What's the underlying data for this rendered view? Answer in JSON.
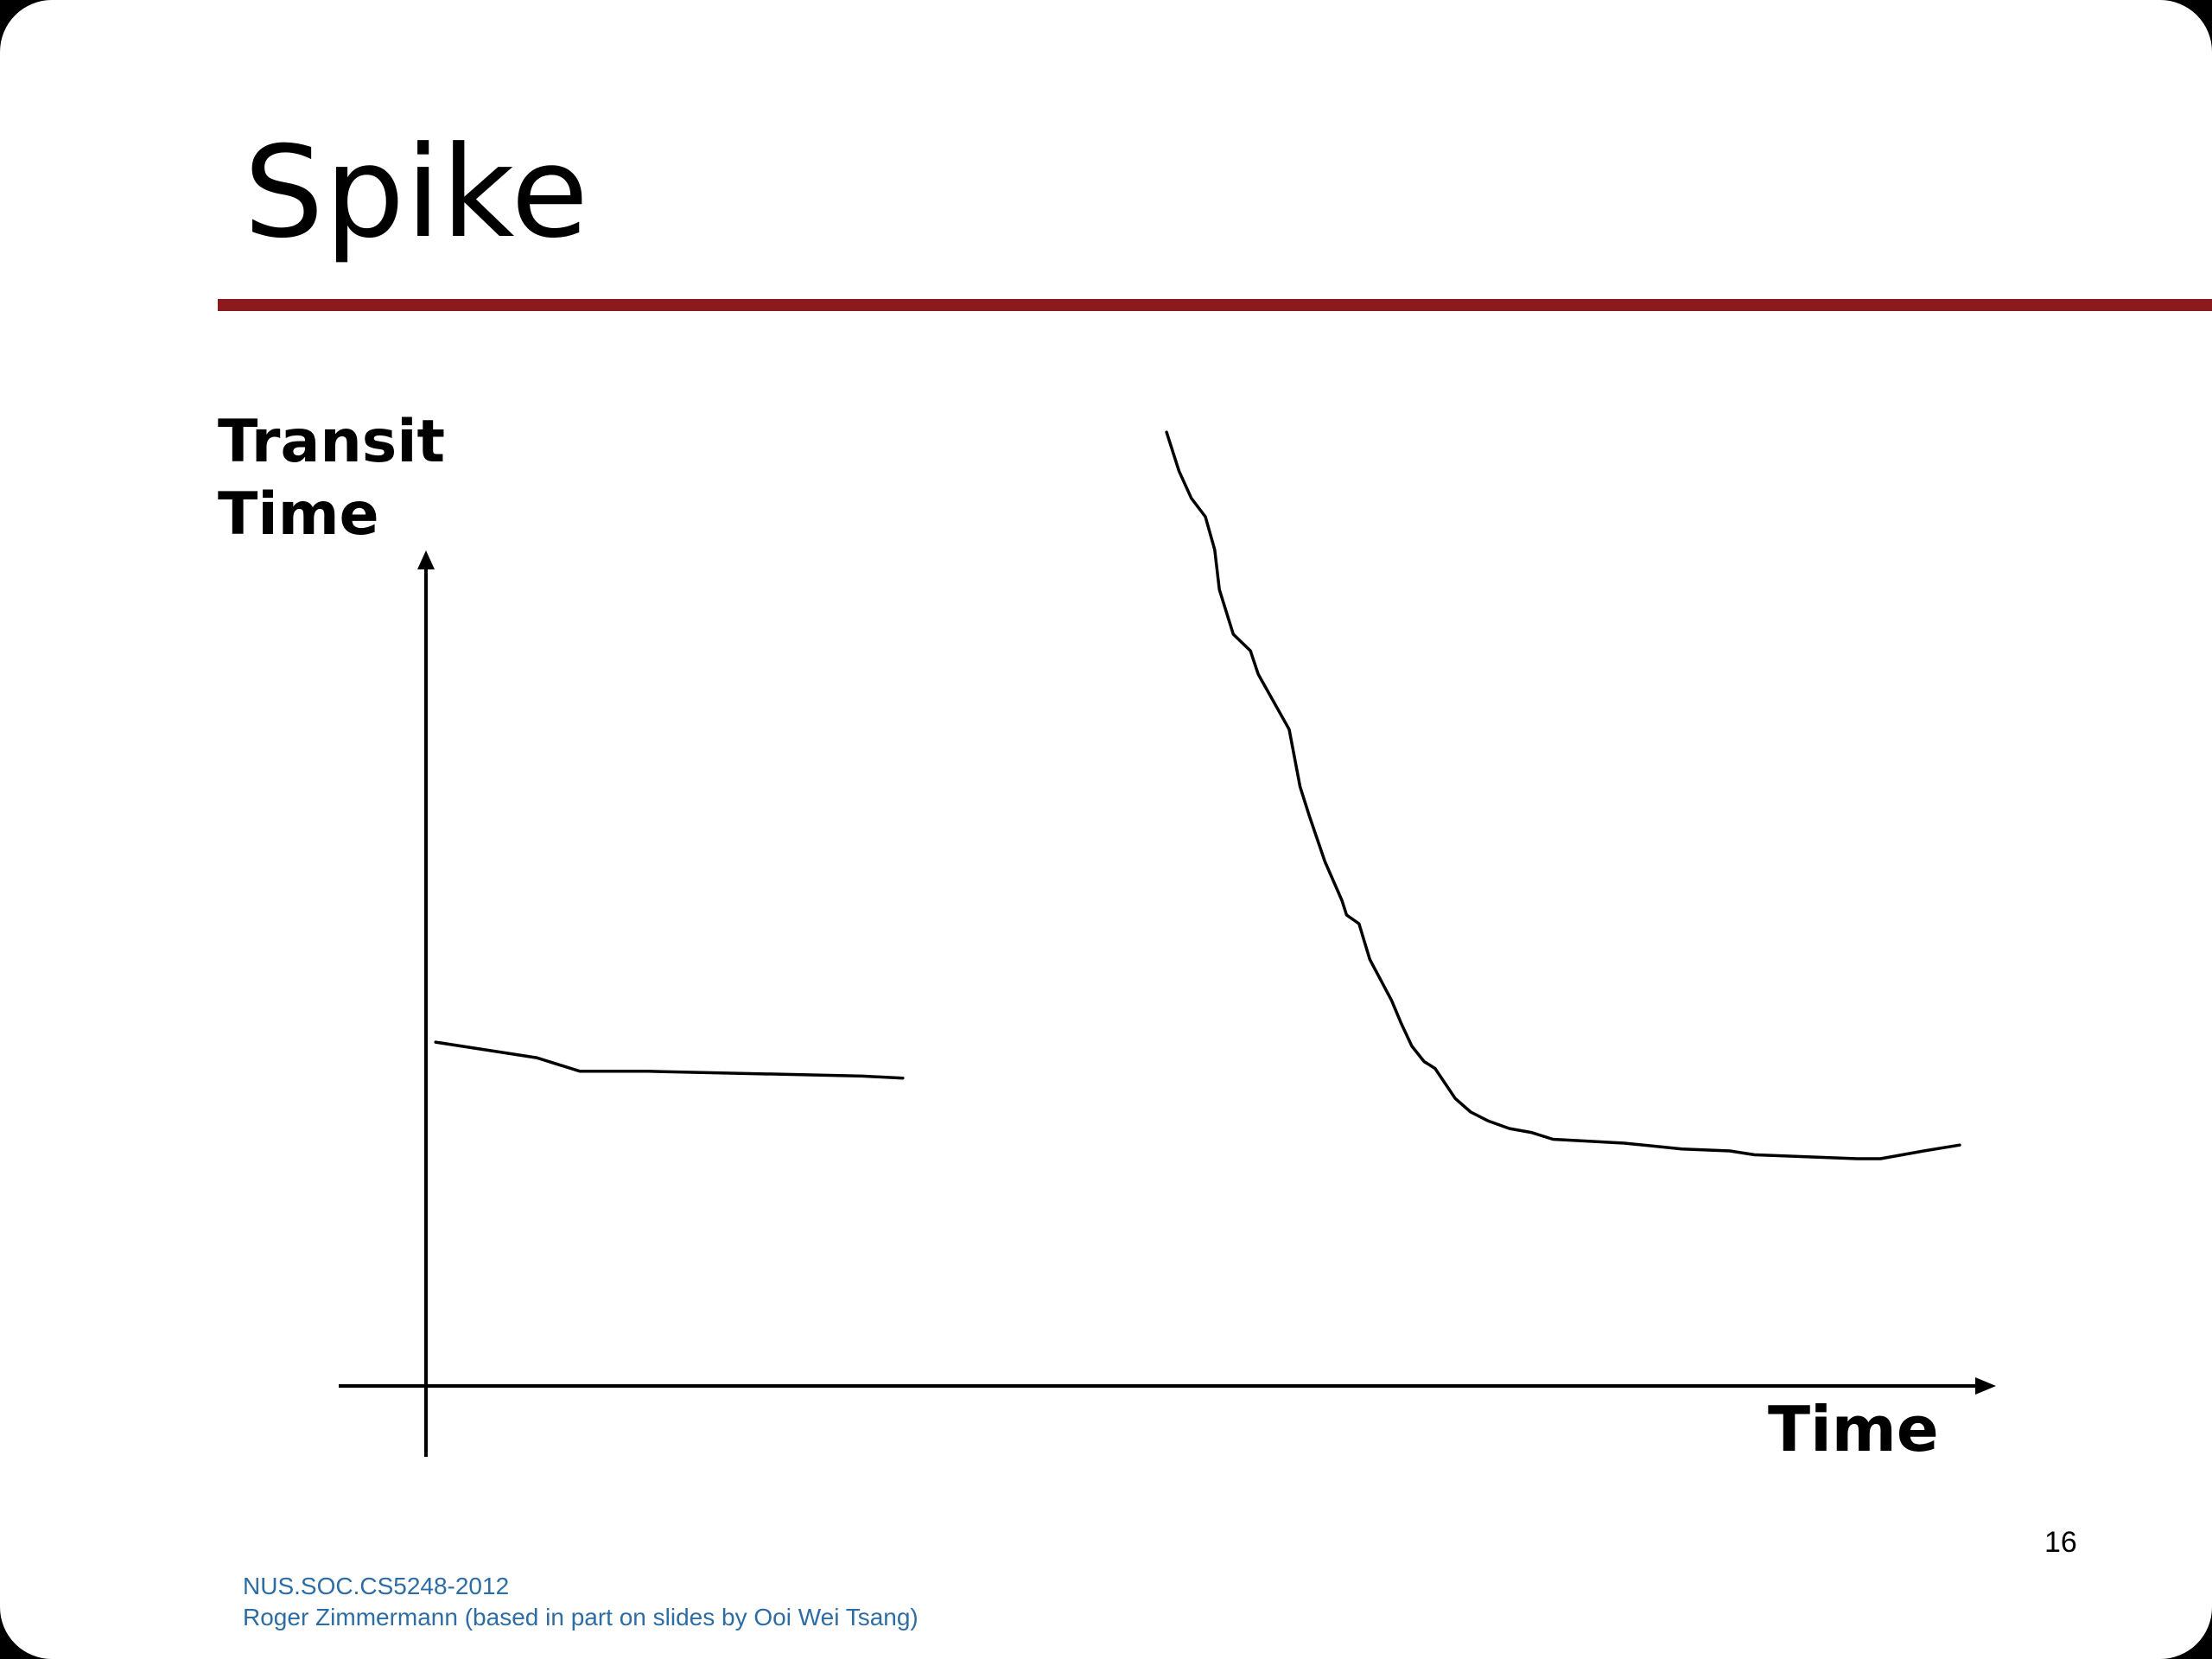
{
  "slide": {
    "title": "Spike",
    "accent_color": "#8B1A1F",
    "page_number": "16",
    "footer_color": "#2E6DA4",
    "footer_lines": [
      "NUS.SOC.CS5248-2012",
      "Roger Zimmermann (based in part on slides by Ooi Wei Tsang)"
    ]
  },
  "chart_data": {
    "type": "line",
    "title": "",
    "xlabel": "Time",
    "ylabel_lines": [
      "Transit",
      "Time"
    ],
    "xlim": [
      0,
      100
    ],
    "ylim": [
      0,
      100
    ],
    "grid": false,
    "legend": "none",
    "series": [
      {
        "x": [
          0.4,
          6.9,
          9.7,
          14.1,
          27.9,
          30.5
        ],
        "y": [
          35.4,
          33.8,
          32.4,
          32.4,
          31.9,
          31.7
        ]
      },
      {
        "x": [
          47.5,
          48.3,
          49.1,
          50.0,
          50.6,
          50.9,
          51.8,
          52.9,
          53.4,
          55.4,
          56.1,
          56.7,
          57.7,
          58.8,
          59.1,
          59.9,
          60.6,
          62.0,
          62.6,
          63.3,
          64.1,
          64.8,
          66.1,
          67.1,
          68.2,
          69.6,
          71.0,
          72.4,
          77.0,
          80.7,
          83.8,
          85.4,
          92.0,
          93.5,
          94.9,
          96.3,
          98.6
        ],
        "y": [
          98.2,
          94.2,
          91.4,
          89.5,
          86.1,
          82.0,
          77.4,
          75.7,
          73.3,
          67.6,
          61.7,
          58.7,
          54.0,
          50.0,
          48.5,
          47.6,
          43.9,
          39.7,
          37.4,
          35.0,
          33.4,
          32.7,
          29.6,
          28.2,
          27.3,
          26.5,
          26.1,
          25.4,
          25.0,
          24.4,
          24.2,
          23.8,
          23.4,
          23.4,
          23.8,
          24.2,
          24.8
        ]
      }
    ]
  }
}
